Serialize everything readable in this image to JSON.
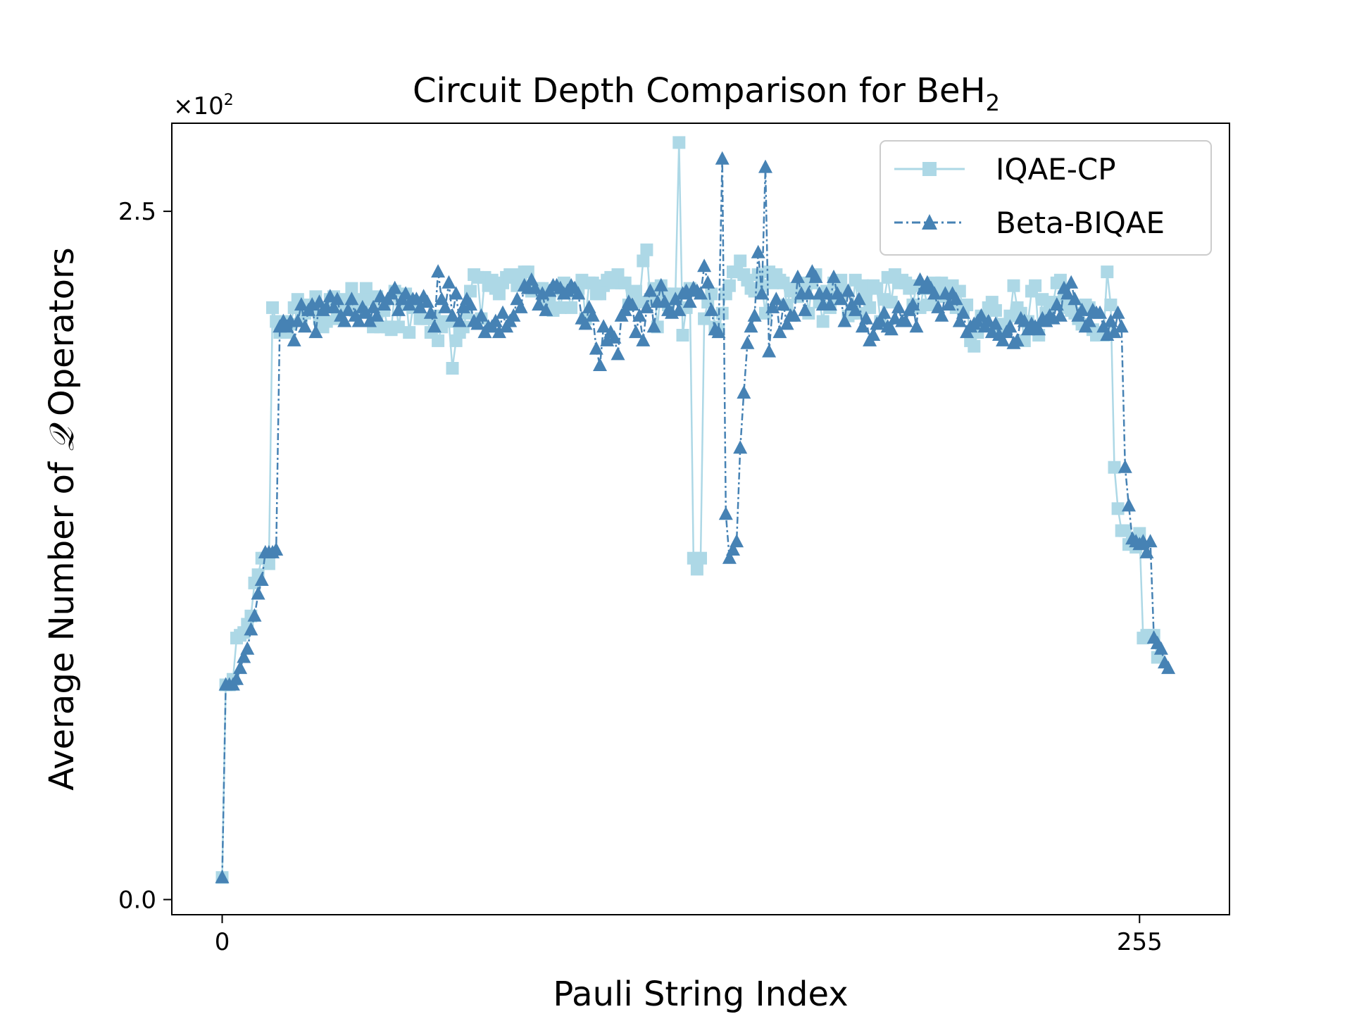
{
  "chart_data": {
    "type": "line",
    "title": "Circuit Depth Comparison for BeH",
    "title_subscript": "2",
    "xlabel": "Pauli String Index",
    "ylabel_prefix": "Average Number of ",
    "ylabel_symbol": "𝒬",
    "ylabel_suffix": " Operators",
    "y_scale_note": "×10",
    "y_scale_exp": "2",
    "xlim": [
      -14,
      280
    ],
    "ylim": [
      -0.055,
      2.82
    ],
    "x_ticks": [
      0,
      255
    ],
    "x_tick_labels": [
      "0",
      "255"
    ],
    "y_ticks": [
      0.0,
      2.5
    ],
    "y_tick_labels": [
      "0.0",
      "2.5"
    ],
    "grid": false,
    "legend_position": "top-right",
    "colors": {
      "iqae": "#add8e6",
      "beta": "#4682b4",
      "axis": "#000000",
      "legend_border": "#cccccc"
    },
    "series": [
      {
        "name": "IQAE-CP",
        "marker": "square",
        "linestyle": "solid",
        "values": [
          0.08,
          0.78,
          0.78,
          0.8,
          0.95,
          0.96,
          0.97,
          1.0,
          1.03,
          1.15,
          1.18,
          1.24,
          1.24,
          1.22,
          2.15,
          2.1,
          2.06,
          2.1,
          2.06,
          2.09,
          2.15,
          2.18,
          2.11,
          2.13,
          2.16,
          2.14,
          2.19,
          2.11,
          2.08,
          2.1,
          2.18,
          2.19,
          2.11,
          2.16,
          2.18,
          2.15,
          2.22,
          2.14,
          2.18,
          2.16,
          2.22,
          2.18,
          2.08,
          2.19,
          2.08,
          2.14,
          2.08,
          2.07,
          2.21,
          2.08,
          2.16,
          2.2,
          2.06,
          2.15,
          2.17,
          2.11,
          2.11,
          2.11,
          2.06,
          2.12,
          2.03,
          2.08,
          2.1,
          2.1,
          1.93,
          2.03,
          2.06,
          2.08,
          2.13,
          2.21,
          2.27,
          2.26,
          2.11,
          2.26,
          2.23,
          2.25,
          2.22,
          2.2,
          2.24,
          2.26,
          2.27,
          2.27,
          2.23,
          2.24,
          2.28,
          2.28,
          2.21,
          2.22,
          2.22,
          2.22,
          2.18,
          2.17,
          2.14,
          2.22,
          2.15,
          2.24,
          2.21,
          2.15,
          2.22,
          2.22,
          2.25,
          2.11,
          2.24,
          2.24,
          2.2,
          2.2,
          2.23,
          2.25,
          2.26,
          2.24,
          2.27,
          2.24,
          2.24,
          2.16,
          2.21,
          2.21,
          2.17,
          2.32,
          2.36,
          2.18,
          2.22,
          2.08,
          2.23,
          2.2,
          2.16,
          2.2,
          2.2,
          2.75,
          2.05,
          2.15,
          2.22,
          1.24,
          1.2,
          1.24,
          2.11,
          2.17,
          2.2,
          2.08,
          2.07,
          2.13,
          2.2,
          2.23,
          2.28,
          2.28,
          2.32,
          2.27,
          2.25,
          2.22,
          2.21,
          2.27,
          2.23,
          2.13,
          2.28,
          2.24,
          2.27,
          2.25,
          2.24,
          2.16,
          2.21,
          2.22,
          2.19,
          2.2,
          2.24,
          2.13,
          2.24,
          2.27,
          2.17,
          2.1,
          2.21,
          2.15,
          2.24,
          2.19,
          2.25,
          2.21,
          2.12,
          2.13,
          2.25,
          2.13,
          2.23,
          2.19,
          2.15,
          2.23,
          2.22,
          2.1,
          2.18,
          2.26,
          2.17,
          2.27,
          2.24,
          2.25,
          2.24,
          2.22,
          2.16,
          2.23,
          2.15,
          2.22,
          2.16,
          2.16,
          2.24,
          2.2,
          2.24,
          2.19,
          2.22,
          2.23,
          2.15,
          2.21,
          2.14,
          2.16,
          2.03,
          2.01,
          2.06,
          2.12,
          2.1,
          2.15,
          2.17,
          2.14,
          2.07,
          2.09,
          2.08,
          2.12,
          2.23,
          2.15,
          2.13,
          2.03,
          2.1,
          2.21,
          2.23,
          2.05,
          2.18,
          2.13,
          2.15,
          2.17,
          2.24,
          2.25,
          2.19,
          2.15,
          2.14,
          2.13,
          2.11,
          2.09,
          2.16,
          2.15,
          2.07,
          2.05,
          2.06,
          2.05,
          2.28,
          2.16,
          1.57,
          1.42,
          1.34,
          1.34,
          1.29,
          1.31,
          1.28,
          1.33,
          0.95,
          0.96,
          0.96,
          0.96,
          0.88
        ]
      },
      {
        "name": "Beta-BIQAE",
        "marker": "triangle",
        "linestyle": "dashdot",
        "values": [
          0.08,
          0.78,
          0.78,
          0.78,
          0.8,
          0.84,
          0.88,
          0.91,
          0.98,
          1.03,
          1.11,
          1.16,
          1.26,
          1.26,
          1.26,
          1.27,
          2.08,
          2.1,
          2.08,
          2.1,
          2.03,
          2.1,
          2.16,
          2.08,
          2.14,
          2.16,
          2.06,
          2.17,
          2.14,
          2.15,
          2.19,
          2.15,
          2.18,
          2.12,
          2.1,
          2.14,
          2.18,
          2.12,
          2.1,
          2.15,
          2.13,
          2.1,
          2.15,
          2.12,
          2.19,
          2.16,
          2.18,
          2.2,
          2.22,
          2.14,
          2.18,
          2.2,
          2.16,
          2.18,
          2.18,
          2.15,
          2.19,
          2.17,
          2.13,
          2.08,
          2.28,
          2.18,
          2.15,
          2.24,
          2.12,
          2.2,
          2.1,
          2.15,
          2.18,
          2.16,
          2.1,
          2.09,
          2.12,
          2.06,
          2.08,
          2.08,
          2.1,
          2.06,
          2.13,
          2.08,
          2.1,
          2.12,
          2.18,
          2.15,
          2.23,
          2.22,
          2.25,
          2.22,
          2.16,
          2.2,
          2.14,
          2.21,
          2.23,
          2.23,
          2.22,
          2.2,
          2.21,
          2.23,
          2.22,
          2.2,
          2.11,
          2.09,
          2.15,
          2.12,
          2.0,
          1.94,
          2.08,
          2.03,
          2.06,
          2.04,
          1.98,
          2.12,
          2.14,
          2.17,
          2.16,
          2.06,
          2.12,
          2.03,
          2.15,
          2.21,
          2.08,
          2.17,
          2.23,
          2.17,
          2.14,
          2.13,
          2.18,
          2.14,
          2.2,
          2.21,
          2.17,
          2.22,
          2.21,
          2.2,
          2.3,
          2.24,
          2.14,
          2.07,
          2.06,
          2.69,
          1.4,
          1.24,
          1.27,
          1.3,
          1.64,
          1.84,
          2.02,
          2.08,
          2.12,
          2.35,
          2.2,
          2.66,
          1.99,
          2.15,
          2.18,
          2.06,
          2.16,
          2.09,
          2.12,
          2.12,
          2.26,
          2.2,
          2.14,
          2.2,
          2.28,
          2.26,
          2.2,
          2.16,
          2.2,
          2.16,
          2.26,
          2.2,
          2.18,
          2.1,
          2.21,
          2.16,
          2.14,
          2.18,
          2.08,
          2.11,
          2.03,
          2.05,
          2.09,
          2.1,
          2.13,
          2.08,
          2.07,
          2.11,
          2.15,
          2.1,
          2.1,
          2.14,
          2.16,
          2.08,
          2.25,
          2.22,
          2.24,
          2.22,
          2.2,
          2.15,
          2.12,
          2.2,
          2.16,
          2.2,
          2.18,
          2.1,
          2.13,
          2.06,
          2.08,
          2.09,
          2.1,
          2.12,
          2.08,
          2.1,
          2.06,
          2.09,
          2.05,
          2.03,
          2.06,
          2.08,
          2.02,
          2.03,
          2.11,
          2.1,
          2.07,
          2.09,
          2.08,
          2.07,
          2.11,
          2.1,
          2.12,
          2.11,
          2.16,
          2.12,
          2.22,
          2.2,
          2.24,
          2.18,
          2.12,
          2.14,
          2.08,
          2.1,
          2.14,
          2.13,
          2.13,
          2.08,
          2.05,
          2.1,
          2.06,
          2.13,
          2.08,
          1.57,
          1.43,
          1.31,
          1.3,
          1.29,
          1.3,
          1.26,
          1.3,
          0.95,
          0.93,
          0.91,
          0.86,
          0.84
        ]
      }
    ]
  }
}
